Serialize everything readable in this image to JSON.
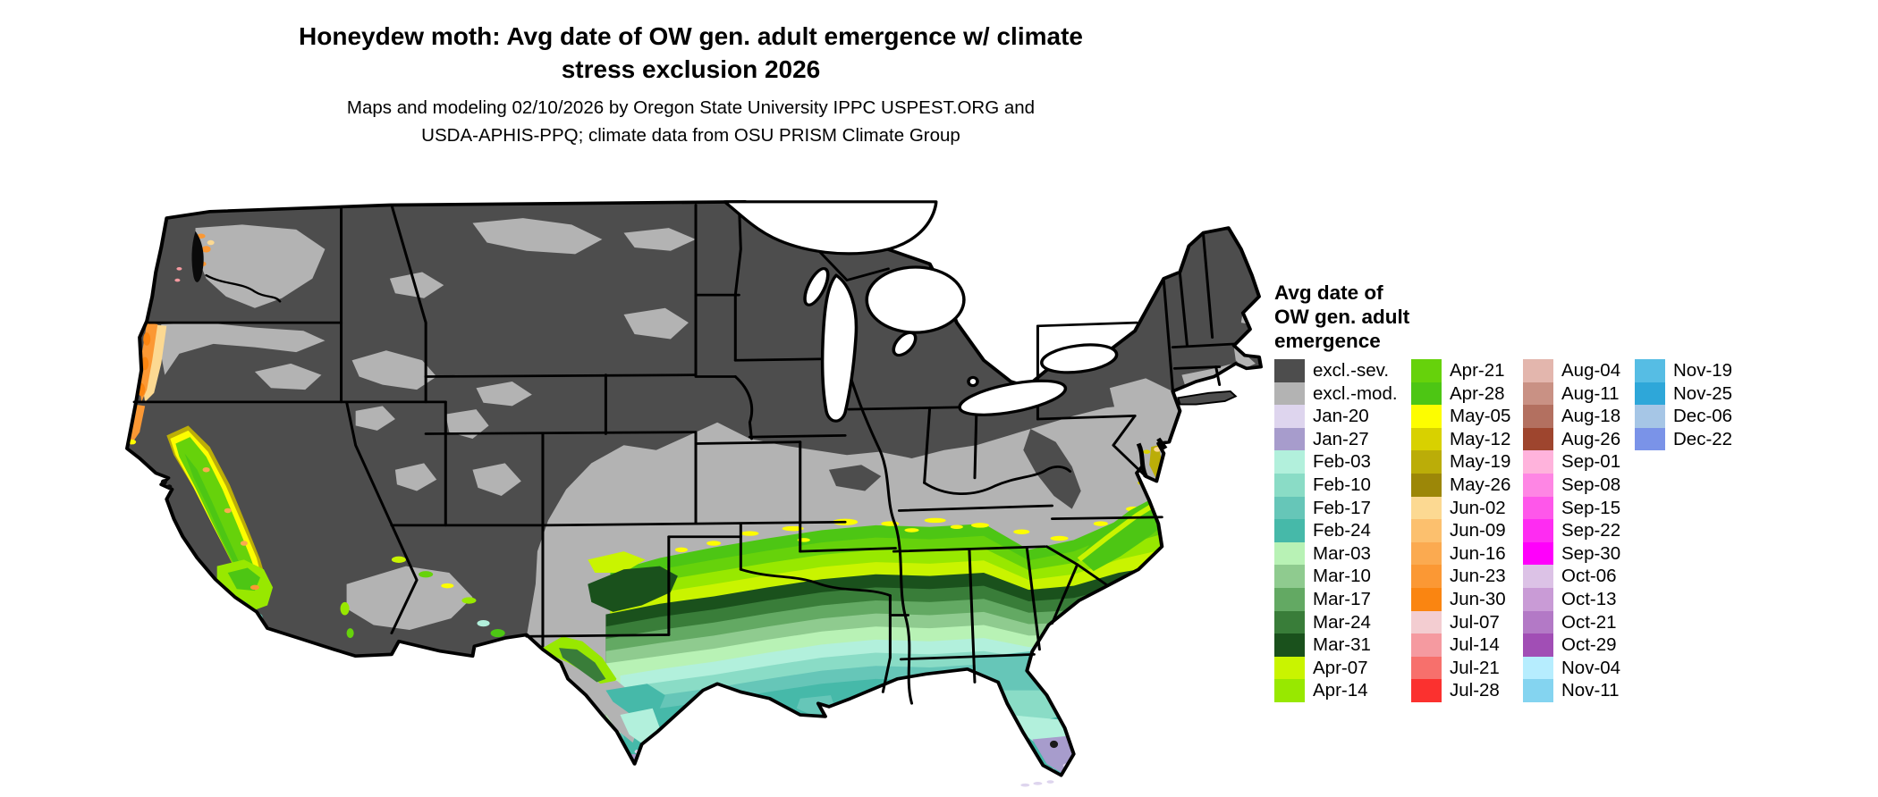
{
  "title": {
    "line1": "Honeydew moth: Avg date of OW gen. adult emergence w/ climate",
    "line2": "stress exclusion 2026"
  },
  "subtitle": {
    "line1": "Maps and modeling 02/10/2026 by Oregon State University IPPC USPEST.ORG and",
    "line2": "USDA-APHIS-PPQ; climate data from OSU PRISM Climate Group"
  },
  "legend": {
    "title_line1": "Avg date of",
    "title_line2": "OW gen. adult",
    "title_line3": "emergence",
    "columns": [
      {
        "entries": [
          {
            "label": "excl.-sev.",
            "color": "#4d4d4d"
          },
          {
            "label": "excl.-mod.",
            "color": "#b3b3b3"
          },
          {
            "label": "Jan-20",
            "color": "#ded5ee"
          },
          {
            "label": "Jan-27",
            "color": "#a79ccc"
          },
          {
            "label": "Feb-03",
            "color": "#b2f0dc"
          },
          {
            "label": "Feb-10",
            "color": "#8adcc6"
          },
          {
            "label": "Feb-17",
            "color": "#66c6b8"
          },
          {
            "label": "Feb-24",
            "color": "#46b9a9"
          },
          {
            "label": "Mar-03",
            "color": "#b8f2b5"
          },
          {
            "label": "Mar-10",
            "color": "#8fcb8f"
          },
          {
            "label": "Mar-17",
            "color": "#63a963"
          },
          {
            "label": "Mar-24",
            "color": "#397d39"
          },
          {
            "label": "Mar-31",
            "color": "#1a511c"
          },
          {
            "label": "Apr-07",
            "color": "#c9f400"
          },
          {
            "label": "Apr-14",
            "color": "#98e800"
          }
        ]
      },
      {
        "entries": [
          {
            "label": "Apr-21",
            "color": "#66d20b"
          },
          {
            "label": "Apr-28",
            "color": "#4dc614"
          },
          {
            "label": "May-05",
            "color": "#fdfd00"
          },
          {
            "label": "May-12",
            "color": "#d8d100"
          },
          {
            "label": "May-19",
            "color": "#bbad08"
          },
          {
            "label": "May-26",
            "color": "#9c8708"
          },
          {
            "label": "Jun-02",
            "color": "#fcd992"
          },
          {
            "label": "Jun-09",
            "color": "#fcc06e"
          },
          {
            "label": "Jun-16",
            "color": "#fbaa50"
          },
          {
            "label": "Jun-23",
            "color": "#fb9834"
          },
          {
            "label": "Jun-30",
            "color": "#fa8511"
          },
          {
            "label": "Jul-07",
            "color": "#f3cdd1"
          },
          {
            "label": "Jul-14",
            "color": "#f59aa0"
          },
          {
            "label": "Jul-21",
            "color": "#f7706c"
          },
          {
            "label": "Jul-28",
            "color": "#fb312f"
          }
        ]
      },
      {
        "entries": [
          {
            "label": "Aug-04",
            "color": "#e3b6ad"
          },
          {
            "label": "Aug-11",
            "color": "#c99184"
          },
          {
            "label": "Aug-18",
            "color": "#b37060"
          },
          {
            "label": "Aug-26",
            "color": "#9e452e"
          },
          {
            "label": "Sep-01",
            "color": "#ffb3dc"
          },
          {
            "label": "Sep-08",
            "color": "#fe86e4"
          },
          {
            "label": "Sep-15",
            "color": "#fe57ea"
          },
          {
            "label": "Sep-22",
            "color": "#fe2cf2"
          },
          {
            "label": "Sep-30",
            "color": "#ff00fb"
          },
          {
            "label": "Oct-06",
            "color": "#dcc2e6"
          },
          {
            "label": "Oct-13",
            "color": "#c99bd6"
          },
          {
            "label": "Oct-21",
            "color": "#b379c6"
          },
          {
            "label": "Oct-29",
            "color": "#a14eb5"
          },
          {
            "label": "Nov-04",
            "color": "#b6edfe"
          },
          {
            "label": "Nov-11",
            "color": "#84d4f0"
          }
        ]
      },
      {
        "entries": [
          {
            "label": "Nov-19",
            "color": "#56bde4"
          },
          {
            "label": "Nov-25",
            "color": "#2ea7d9"
          },
          {
            "label": "Dec-06",
            "color": "#a6c6e6"
          },
          {
            "label": "Dec-22",
            "color": "#7a93e8"
          }
        ]
      }
    ]
  },
  "map": {
    "background_color": "#ffffff",
    "excluded_severe_color": "#4d4d4d",
    "excluded_moderate_color": "#b3b3b3",
    "border_color": "#000000",
    "water_color": "#ffffff"
  }
}
